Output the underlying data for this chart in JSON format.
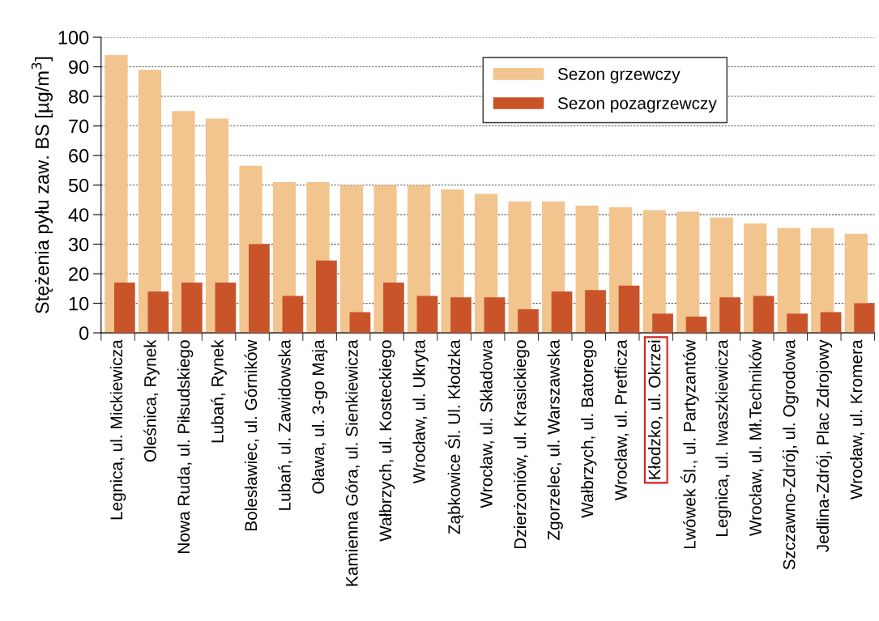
{
  "chart_data": {
    "type": "bar",
    "ylabel": "Stężenia pyłu zaw. BS [µg/m$^{3}$]",
    "categories": [
      "Legnica, ul. Mickiewicza",
      "Oleśnica, Rynek",
      "Nowa Ruda, ul. Piłsudskiego",
      "Lubań, Rynek",
      "Bolesławiec, ul. Górników",
      "Lubań, ul. Zawidowska",
      "Oława, ul. 3-go Maja",
      "Kamienna Góra, ul. Sienkiewicza",
      "Wałbrzych, ul. Kosteckiego",
      "Wrocław, ul. Ukryta",
      "Ząbkowice Śl. Ul. Kłodzka",
      "Wrocław, ul. Składowa",
      "Dzierżoniów, ul. Krasickiego",
      "Zgorzelec, ul. Warszawska",
      "Wałbrzych, ul. Batorego",
      "Wrocław, ul. Pretficza",
      "Kłodzko, ul. Okrzei",
      "Lwówek Śl., ul. Partyzantów",
      "Legnica, ul. Iwaszkiewicza",
      "Wrocław, ul. Mł.Techników",
      "Szczawno-Zdrój, ul. Ogrodowa",
      "Jedlina-Zdrój, Plac Zdrojowy",
      "Wrocław, ul. Kromera"
    ],
    "series": [
      {
        "name": "Sezon grzewczy",
        "color": "#f2c48e",
        "values": [
          94,
          89,
          75,
          72.5,
          56.5,
          51,
          51,
          50,
          50,
          50,
          48.5,
          47,
          44.5,
          44.5,
          43,
          42.5,
          41.5,
          41,
          39,
          37,
          35.5,
          35.5,
          33.5
        ]
      },
      {
        "name": "Sezon pozagrzewczy",
        "color": "#c9542a",
        "values": [
          17,
          14,
          17,
          17,
          30,
          12.5,
          24.5,
          7,
          17,
          12.5,
          12,
          12,
          8,
          14,
          14.5,
          16,
          6.5,
          5.5,
          12,
          12.5,
          6.5,
          7,
          10
        ]
      }
    ],
    "ylim": [
      0,
      100
    ],
    "yticks": [
      0,
      10,
      20,
      30,
      40,
      50,
      60,
      70,
      80,
      90,
      100
    ],
    "grid": "y",
    "legend": "top right"
  }
}
